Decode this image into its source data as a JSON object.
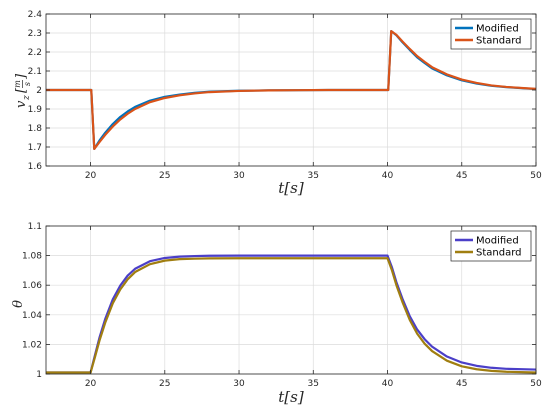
{
  "chart_data": [
    {
      "type": "line",
      "ylabel_main": "v",
      "ylabel_sub": "z",
      "ylabel_num": "m",
      "ylabel_den": "s",
      "xlabel": "t[s]",
      "xlim": [
        17,
        50
      ],
      "ylim": [
        1.6,
        2.4
      ],
      "xticks": [
        "20",
        "25",
        "30",
        "35",
        "40",
        "45",
        "50"
      ],
      "yticks": [
        "1.6",
        "1.7",
        "1.8",
        "1.9",
        "2",
        "2.1",
        "2.2",
        "2.3",
        "2.4"
      ],
      "grid": true,
      "legend_position": "top-right",
      "series": [
        {
          "name": "Modified",
          "color": "#0072BD",
          "x": [
            17,
            20.05,
            20.25,
            20.6,
            21,
            21.5,
            22,
            22.5,
            23,
            24,
            25,
            26,
            27,
            28,
            30,
            32,
            34,
            36,
            38,
            40.05,
            40.25,
            40.6,
            41,
            41.5,
            42,
            42.5,
            43,
            44,
            45,
            46,
            47,
            48,
            50
          ],
          "y": [
            2.0,
            2.0,
            1.69,
            1.734,
            1.776,
            1.821,
            1.858,
            1.887,
            1.911,
            1.944,
            1.964,
            1.976,
            1.985,
            1.991,
            1.996,
            1.998,
            1.999,
            2.0,
            2.0,
            2.0,
            2.31,
            2.288,
            2.252,
            2.211,
            2.172,
            2.142,
            2.114,
            2.077,
            2.051,
            2.034,
            2.022,
            2.015,
            2.005
          ]
        },
        {
          "name": "Standard",
          "color": "#D95319",
          "x": [
            17,
            20.05,
            20.25,
            20.6,
            21,
            21.5,
            22,
            22.5,
            23,
            24,
            25,
            26,
            27,
            28,
            30,
            32,
            34,
            36,
            38,
            40.05,
            40.25,
            40.6,
            41,
            41.5,
            42,
            42.5,
            43,
            44,
            45,
            46,
            47,
            48,
            50
          ],
          "y": [
            2.0,
            2.0,
            1.69,
            1.726,
            1.765,
            1.808,
            1.845,
            1.875,
            1.9,
            1.936,
            1.958,
            1.972,
            1.982,
            1.989,
            1.995,
            1.998,
            1.999,
            2.0,
            2.0,
            2.0,
            2.31,
            2.29,
            2.256,
            2.216,
            2.178,
            2.148,
            2.12,
            2.082,
            2.055,
            2.037,
            2.024,
            2.016,
            2.006
          ]
        }
      ]
    },
    {
      "type": "line",
      "ylabel": "θ",
      "xlabel": "t[s]",
      "xlim": [
        17,
        50
      ],
      "ylim": [
        1.0,
        1.1
      ],
      "xticks": [
        "20",
        "25",
        "30",
        "35",
        "40",
        "45",
        "50"
      ],
      "yticks": [
        "1",
        "1.02",
        "1.04",
        "1.06",
        "1.08",
        "1.1"
      ],
      "grid": true,
      "legend_position": "top-right",
      "series": [
        {
          "name": "Modified",
          "color": "#4B3FC8",
          "x": [
            17,
            20.0,
            20.3,
            20.6,
            21,
            21.5,
            22,
            22.5,
            23,
            24,
            25,
            26,
            27,
            28,
            30,
            32,
            34,
            36,
            38,
            40.0,
            40.3,
            40.6,
            41,
            41.5,
            42,
            42.5,
            43,
            44,
            45,
            46,
            47,
            48,
            50
          ],
          "y": [
            1.001,
            1.001,
            1.0128,
            1.0245,
            1.0375,
            1.0505,
            1.0597,
            1.0665,
            1.0711,
            1.0762,
            1.0784,
            1.0793,
            1.0797,
            1.0799,
            1.08,
            1.08,
            1.08,
            1.08,
            1.08,
            1.08,
            1.072,
            1.062,
            1.051,
            1.039,
            1.03,
            1.0235,
            1.0185,
            1.0118,
            1.0078,
            1.0055,
            1.0042,
            1.0035,
            1.003
          ]
        },
        {
          "name": "Standard",
          "color": "#A07E10",
          "x": [
            17,
            20.0,
            20.3,
            20.6,
            21,
            21.5,
            22,
            22.5,
            23,
            24,
            25,
            26,
            27,
            28,
            30,
            32,
            34,
            36,
            38,
            40.0,
            40.3,
            40.6,
            41,
            41.5,
            42,
            42.5,
            43,
            44,
            45,
            46,
            47,
            48,
            50
          ],
          "y": [
            1.001,
            1.001,
            1.0115,
            1.0225,
            1.035,
            1.0478,
            1.0571,
            1.064,
            1.0689,
            1.0742,
            1.0766,
            1.0776,
            1.0779,
            1.0781,
            1.0782,
            1.0782,
            1.0782,
            1.0782,
            1.0782,
            1.0782,
            1.07,
            1.06,
            1.0488,
            1.0365,
            1.0272,
            1.0205,
            1.0155,
            1.009,
            1.0052,
            1.0032,
            1.0021,
            1.0015,
            1.001
          ]
        }
      ]
    }
  ]
}
